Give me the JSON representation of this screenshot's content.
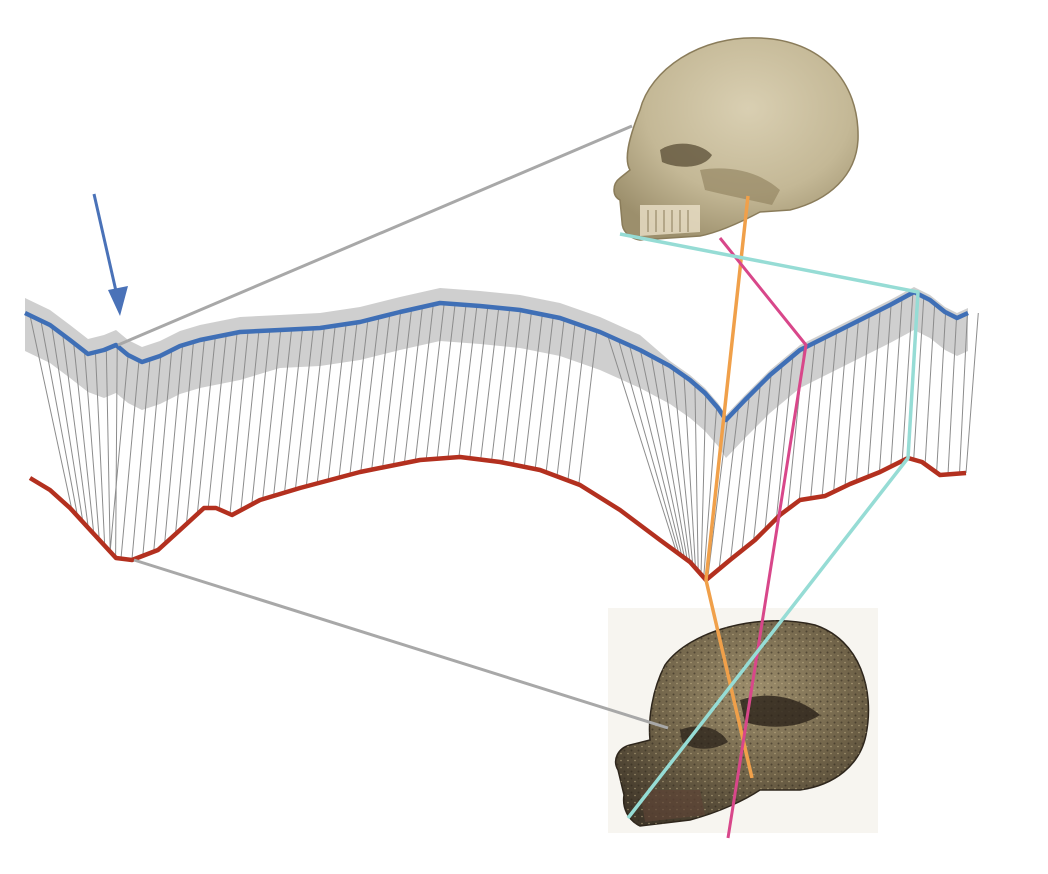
{
  "figure": {
    "kind": "skull-profile-alignment",
    "colors": {
      "background": "#ffffff",
      "upper_profile": "#3f6fb6",
      "upper_band": "#cfcfcf",
      "lower_profile": "#b3301f",
      "correspondence": "#8c8c8c",
      "callout_line": "#a8a8a8",
      "arrow": "#4a72b8",
      "orange_line": "#f0a04a",
      "magenta_line": "#d8478a",
      "cyan_line": "#96dcd5"
    },
    "icons": {
      "top_skull": "modern-human-skull-icon",
      "bottom_skull": "fossil-skull-icon",
      "arrow": "arrow-down-icon"
    }
  }
}
